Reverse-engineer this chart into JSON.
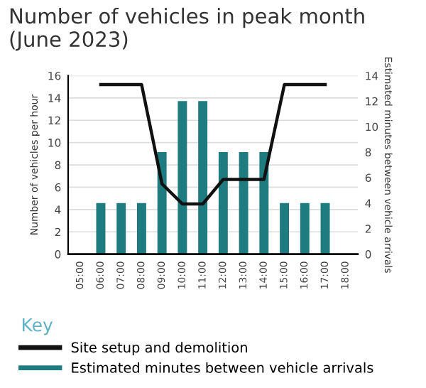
{
  "chart_data": {
    "type": "bar",
    "title": "Number of vehicles in peak month\n(June 2023)",
    "ylabel": "Number of vehicles per hour",
    "y2label": "Estimated minutes between vehicle arrivals",
    "legend_title": "Key",
    "categories": [
      "05:00",
      "06:00",
      "07:00",
      "08:00",
      "09:00",
      "10:00",
      "11:00",
      "12:00",
      "13:00",
      "14:00",
      "15:00",
      "16:00",
      "17:00",
      "18:00"
    ],
    "series": [
      {
        "name": "Site setup and demolition",
        "type": "line",
        "color": "#111111",
        "values": [
          null,
          15.2,
          15.2,
          15.2,
          6.3,
          4.5,
          4.5,
          6.7,
          6.7,
          6.7,
          15.2,
          15.2,
          15.2,
          null
        ]
      },
      {
        "name": "Estimated minutes between vehicle arrivals",
        "axis": "y2",
        "color": "#1e7b80",
        "values": [
          null,
          4,
          4,
          4,
          8,
          12,
          12,
          8,
          8,
          8,
          4,
          4,
          4,
          null
        ]
      }
    ],
    "ylim": [
      0,
      16
    ],
    "yticks": [
      0,
      2,
      4,
      6,
      8,
      10,
      12,
      14,
      16
    ],
    "y2lim": [
      0,
      14
    ],
    "y2ticks": [
      0,
      2,
      4,
      6,
      8,
      10,
      12,
      14
    ],
    "grid": "y",
    "legend": "bottom"
  }
}
